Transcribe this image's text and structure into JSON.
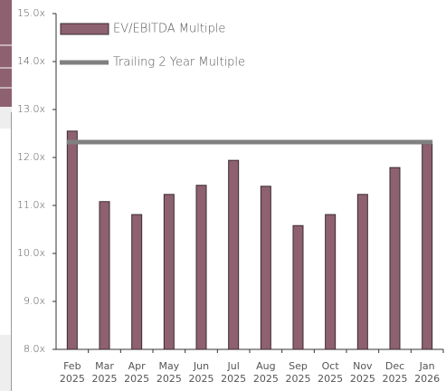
{
  "chart_data": {
    "type": "bar",
    "categories": [
      "Feb 2025",
      "Mar 2025",
      "Apr 2025",
      "May 2025",
      "Jun 2025",
      "Jul 2025",
      "Aug 2025",
      "Sep 2025",
      "Oct 2025",
      "Nov 2025",
      "Dec 2025",
      "Jan 2026"
    ],
    "series": [
      {
        "name": "EV/EBITDA Multiple",
        "color": "#8e6170",
        "values": [
          12.55,
          11.08,
          10.81,
          11.23,
          11.42,
          11.94,
          11.4,
          10.58,
          10.81,
          11.23,
          11.79,
          12.28
        ]
      },
      {
        "name": "Trailing 2 Year Multiple",
        "color": "#808080",
        "type": "line",
        "values": [
          12.32,
          12.32,
          12.32,
          12.32,
          12.32,
          12.32,
          12.32,
          12.32,
          12.32,
          12.32,
          12.32,
          12.32
        ]
      }
    ],
    "ylim": [
      8,
      15
    ],
    "yticks": [
      {
        "value": 8,
        "label": "8.0x"
      },
      {
        "value": 9,
        "label": "9.0x"
      },
      {
        "value": 10,
        "label": "10.0x"
      },
      {
        "value": 11,
        "label": "11.0x"
      },
      {
        "value": 12,
        "label": "12.0x"
      },
      {
        "value": 13,
        "label": "13.0x"
      },
      {
        "value": 14,
        "label": "14.0x"
      },
      {
        "value": 15,
        "label": "15.0x"
      }
    ],
    "legend": "top-left"
  }
}
